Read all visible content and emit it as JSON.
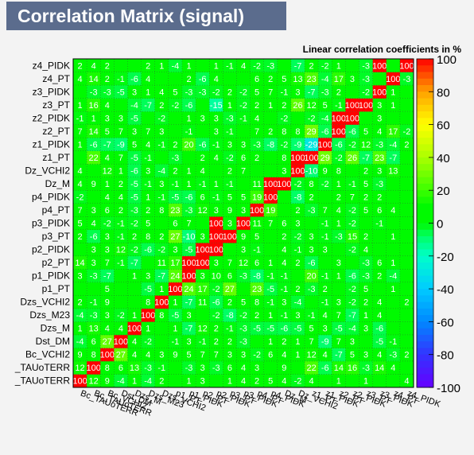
{
  "chart_data": {
    "type": "heatmap",
    "title": "Correlation Matrix (signal)",
    "subtitle": "Linear correlation coefficients in %",
    "variables": [
      "Bc_TAUoTERR",
      "Bc_TAUoTERR",
      "Bc_VCHI2",
      "Dst_DM",
      "Dzs_M",
      "Dzs_M23",
      "Dzs_VCHI2",
      "p1_PT",
      "p1_PIDK",
      "p2_PT",
      "p2_PIDK",
      "p3_PT",
      "p3_PIDK",
      "p4_PT",
      "p4_PIDK",
      "Dz_M",
      "Dz_VCHI2",
      "z1_PT",
      "z1_PIDK",
      "z2_PT",
      "z2_PIDK",
      "z3_PT",
      "z3_PIDK",
      "z4_PT",
      "z4_PIDK"
    ],
    "y_labels": [
      "_TAUoTERR",
      "_TAUoTERR",
      "Bc_VCHI2",
      "Dst_DM",
      "Dzs_M",
      "Dzs_M23",
      "Dzs_VCHI2",
      "p1_PT",
      "p1_PIDK",
      "p2_PT",
      "p2_PIDK",
      "p3_PT",
      "p3_PIDK",
      "p4_PT",
      "p4_PIDK",
      "Dz_M",
      "Dz_VCHI2",
      "z1_PT",
      "z1_PIDK",
      "z2_PT",
      "z2_PIDK",
      "z3_PT",
      "z3_PIDK",
      "z4_PT",
      "z4_PIDK"
    ],
    "x_labels": [
      "Bc_TAUoTERR",
      "Bc_TAUoTERR",
      "Bc_VCHI2",
      "Dst_DM",
      "Dzs_M",
      "Dzs_M23",
      "Dzs_VCHI2",
      "p1_PT",
      "p1_PIDK",
      "p2_PT",
      "p2_PIDK",
      "p3_PT",
      "p3_PIDK",
      "p4_PT",
      "p4_PIDK",
      "Dz_M",
      "Dz_VCHI2",
      "z1_PT",
      "z1_PIDK",
      "z2_PT",
      "z2_PIDK",
      "z3_PT",
      "z3_PIDK",
      "z4_PT",
      "z4_PIDK"
    ],
    "matrix": [
      [
        100,
        12,
        9,
        -4,
        1,
        -4,
        2,
        "",
        1,
        3,
        "",
        1,
        4,
        2,
        5,
        4,
        -2,
        4,
        "",
        1,
        "",
        1,
        "",
        "",
        4,
        2
      ],
      [
        12,
        100,
        8,
        6,
        13,
        -3,
        -1,
        "",
        -3,
        3,
        -3,
        6,
        4,
        3,
        "",
        9,
        "",
        22,
        -6,
        14,
        16,
        -3,
        14,
        4
      ],
      [
        9,
        8,
        100,
        27,
        4,
        4,
        3,
        9,
        5,
        7,
        7,
        3,
        3,
        -2,
        6,
        4,
        1,
        12,
        4,
        -7,
        5,
        3,
        4,
        -3,
        2,
        2
      ],
      [
        -4,
        6,
        27,
        100,
        4,
        -2,
        "",
        -1,
        3,
        -1,
        2,
        2,
        -3,
        "",
        1,
        2,
        1,
        7,
        -9,
        7,
        3,
        "",
        -5,
        -1
      ],
      [
        1,
        13,
        4,
        4,
        100,
        1,
        "",
        1,
        -7,
        12,
        2,
        -1,
        -3,
        -5,
        -5,
        -6,
        -5,
        5,
        3,
        -5,
        -4,
        3,
        -6
      ],
      [
        -4,
        -3,
        3,
        -2,
        1,
        100,
        8,
        -5,
        3,
        "",
        -2,
        -8,
        -2,
        2,
        1,
        -1,
        3,
        -1,
        4,
        7,
        -7,
        1,
        4
      ],
      [
        2,
        -1,
        9,
        "",
        "",
        8,
        100,
        1,
        -7,
        11,
        -6,
        2,
        5,
        8,
        -1,
        3,
        -4,
        "",
        -1,
        3,
        -2,
        2,
        4,
        "",
        2
      ],
      [
        "",
        "",
        5,
        "",
        "",
        -5,
        1,
        100,
        24,
        17,
        -2,
        27,
        "",
        23,
        -5,
        -1,
        2,
        -3,
        2,
        "",
        -2,
        5,
        "",
        1
      ],
      [
        3,
        -3,
        -7,
        "",
        1,
        3,
        -7,
        24,
        100,
        3,
        10,
        6,
        -3,
        -8,
        -1,
        -1,
        "",
        20,
        -1,
        1,
        -6,
        -3,
        2,
        -4
      ],
      [
        14,
        3,
        7,
        -1,
        -7,
        "",
        11,
        17,
        100,
        -5,
        3,
        7,
        12,
        6,
        1,
        4,
        2,
        -6,
        "",
        3,
        "",
        -3,
        6,
        1
      ],
      [
        "",
        3,
        3,
        12,
        -2,
        -6,
        -2,
        3,
        -5,
        100,
        1,
        "",
        3,
        -1,
        "",
        4,
        -1,
        3,
        3,
        "",
        -2,
        4
      ],
      [
        2,
        -6,
        3,
        -1,
        2,
        8,
        2,
        27,
        -10,
        3,
        100,
        2,
        9,
        5,
        "",
        2,
        -2,
        3,
        -1,
        -3,
        15,
        2,
        "",
        1
      ],
      [
        5,
        4,
        -2,
        -1,
        -2,
        5,
        "",
        6,
        7,
        "",
        100,
        3,
        5,
        11,
        7,
        6,
        3,
        "",
        -1,
        1,
        -2,
        "",
        -1
      ],
      [
        7,
        3,
        6,
        2,
        -3,
        2,
        8,
        23,
        -3,
        12,
        3,
        9,
        3,
        100,
        19,
        "",
        2,
        -3,
        7,
        4,
        -2,
        5,
        6,
        4
      ],
      [
        -2,
        "",
        4,
        4,
        -5,
        1,
        -1,
        -5,
        -6,
        6,
        -1,
        5,
        5,
        19,
        100,
        "",
        -8,
        2,
        "",
        2,
        7,
        2,
        2
      ],
      [
        4,
        9,
        1,
        2,
        -5,
        -1,
        3,
        -1,
        1,
        -1,
        1,
        -1,
        "",
        11,
        100,
        3,
        -2,
        8,
        -2,
        1,
        -1,
        5,
        -3
      ],
      [
        4,
        "",
        12,
        1,
        -6,
        3,
        -4,
        2,
        1,
        4,
        "",
        2,
        7,
        "",
        "",
        3,
        100,
        -10,
        9,
        8,
        "",
        2,
        3,
        13
      ],
      [
        "",
        22,
        4,
        7,
        -5,
        -1,
        "",
        -3,
        "",
        2,
        4,
        -2,
        6,
        2,
        "",
        8,
        100,
        29,
        29,
        -2,
        26,
        -7,
        23,
        -7
      ],
      [
        1,
        -6,
        -7,
        -9,
        5,
        4,
        -1,
        2,
        20,
        -6,
        -1,
        3,
        3,
        -3,
        -8,
        -2,
        -9,
        -29,
        100,
        -6,
        -2,
        12,
        -3,
        -4,
        2
      ],
      [
        7,
        14,
        5,
        7,
        3,
        7,
        3,
        "",
        -1,
        "",
        3,
        -1,
        "",
        7,
        2,
        8,
        8,
        29,
        -6,
        100,
        -6,
        5,
        4,
        17,
        -2
      ],
      [
        -1,
        1,
        3,
        3,
        -5,
        "",
        -2,
        "",
        1,
        3,
        3,
        -3,
        -1,
        4,
        "",
        -2,
        "",
        -2,
        -4,
        100,
        -1,
        "",
        3
      ],
      [
        1,
        16,
        4,
        "",
        -4,
        -7,
        2,
        -2,
        -6,
        "",
        -15,
        1,
        -2,
        2,
        1,
        2,
        26,
        12,
        5,
        -1,
        100,
        -2,
        3,
        1
      ],
      [
        "",
        -3,
        -3,
        -5,
        3,
        1,
        4,
        5,
        -3,
        -3,
        -2,
        2,
        -2,
        5,
        7,
        -1,
        3,
        -7,
        -3,
        2,
        "",
        -2,
        100,
        1
      ],
      [
        4,
        14,
        2,
        -1,
        -6,
        4,
        "",
        "",
        2,
        -6,
        4,
        "",
        "",
        6,
        2,
        5,
        13,
        23,
        -4,
        17,
        3,
        -3,
        "",
        100,
        -3
      ],
      [
        2,
        4,
        2,
        "",
        "",
        2,
        1,
        -4,
        1,
        "",
        1,
        -1,
        4,
        -2,
        -3,
        "",
        -7,
        2,
        -2,
        1,
        "",
        -3,
        100
      ]
    ],
    "zlim": [
      -100,
      100
    ],
    "z_ticks": [
      100,
      80,
      60,
      40,
      20,
      0,
      -20,
      -40,
      -60,
      -80,
      -100
    ]
  }
}
